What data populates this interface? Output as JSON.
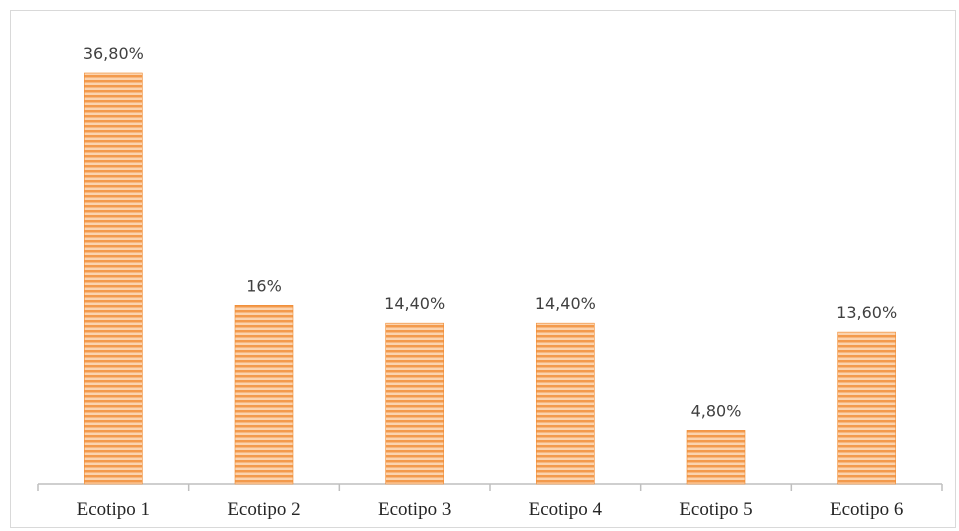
{
  "chart_data": {
    "type": "bar",
    "categories": [
      "Ecotipo 1",
      "Ecotipo 2",
      "Ecotipo 3",
      "Ecotipo 4",
      "Ecotipo 5",
      "Ecotipo 6"
    ],
    "values": [
      36.8,
      16,
      14.4,
      14.4,
      4.8,
      13.6
    ],
    "data_labels": [
      "36,80%",
      "16%",
      "14,40%",
      "14,40%",
      "4,80%",
      "13,60%"
    ],
    "title": "",
    "xlabel": "",
    "ylabel": "",
    "ylim": [
      0,
      40
    ],
    "grid": false,
    "legend": "none",
    "bar_color": "#f4a460",
    "bar_stripe_color": "#f08a30"
  }
}
